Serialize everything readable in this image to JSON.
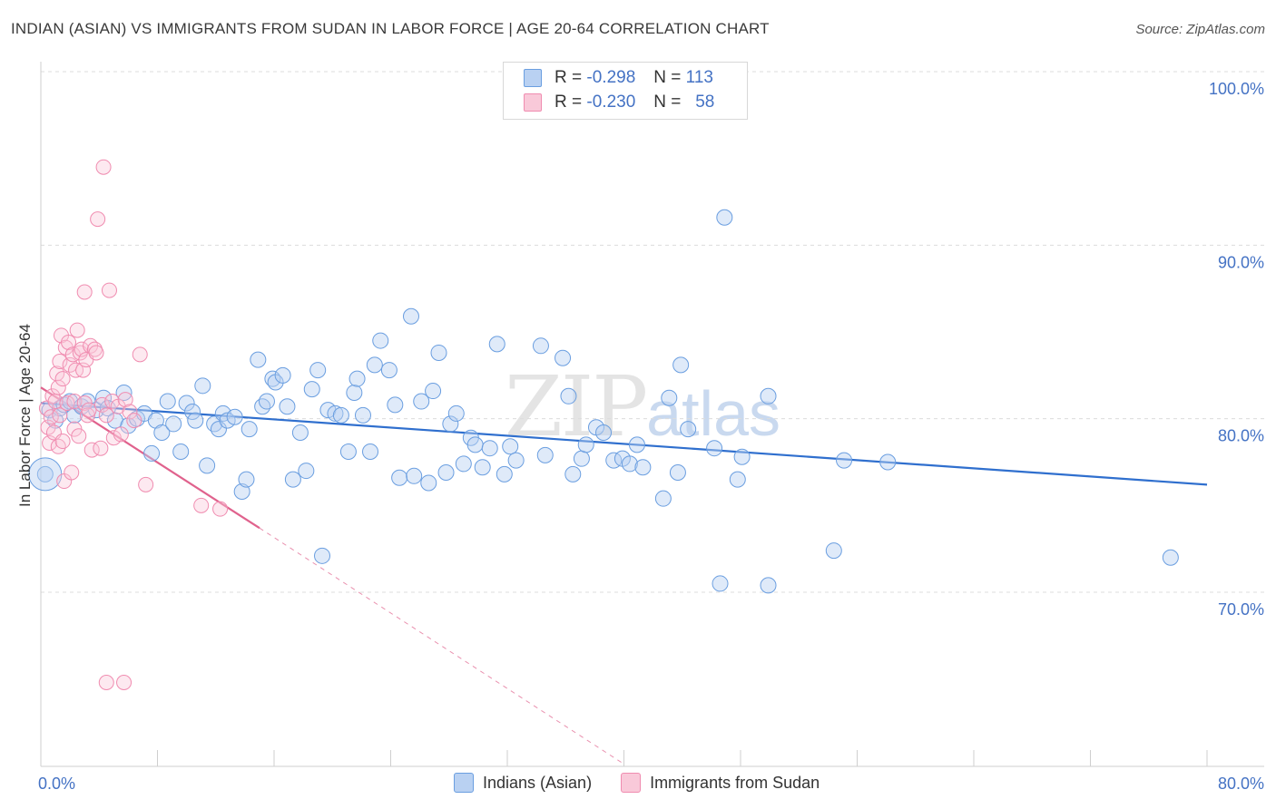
{
  "title": "INDIAN (ASIAN) VS IMMIGRANTS FROM SUDAN IN LABOR FORCE | AGE 20-64 CORRELATION CHART",
  "source": "Source: ZipAtlas.com",
  "watermark": {
    "zip": "ZIP",
    "atlas": "atlas"
  },
  "legend_top": [
    {
      "r_label": "R =",
      "r_value": "-0.298",
      "n_label": "N =",
      "n_value": "113"
    },
    {
      "r_label": "R =",
      "r_value": "-0.230",
      "n_label": "N =",
      "n_value": "58"
    }
  ],
  "legend_bottom": [
    "Indians (Asian)",
    "Immigrants from Sudan"
  ],
  "colors": {
    "blue": "#6a9ee0",
    "blue_line": "#2f6fce",
    "pink": "#f08cb0",
    "pink_line": "#e0628d",
    "grid": "#dcdcdc",
    "axis_text": "#4472c4"
  },
  "chart_data": {
    "type": "scatter",
    "title": "INDIAN (ASIAN) VS IMMIGRANTS FROM SUDAN IN LABOR FORCE | AGE 20-64 CORRELATION CHART",
    "xlabel": "",
    "ylabel": "In Labor Force | Age 20-64",
    "xlim": [
      0,
      80
    ],
    "ylim": [
      60,
      100
    ],
    "x_tick_labels": [
      "0.0%",
      "80.0%"
    ],
    "y_tick_labels": [
      "100.0%",
      "90.0%",
      "80.0%",
      "70.0%"
    ],
    "y_ticks": [
      100,
      90,
      80,
      70
    ],
    "series": [
      {
        "name": "Indians (Asian)",
        "color": "#6a9ee0",
        "trend": {
          "x0": 0,
          "y0": 80.9,
          "x1": 80,
          "y1": 76.2
        },
        "points": [
          [
            0.3,
            76.8
          ],
          [
            0.6,
            80.5
          ],
          [
            1.0,
            79.9
          ],
          [
            1.3,
            80.6
          ],
          [
            1.6,
            80.8
          ],
          [
            2.0,
            81.0
          ],
          [
            2.3,
            80.2
          ],
          [
            2.8,
            80.7
          ],
          [
            3.2,
            81.0
          ],
          [
            3.8,
            80.5
          ],
          [
            4.3,
            81.2
          ],
          [
            4.6,
            80.6
          ],
          [
            5.1,
            79.9
          ],
          [
            5.7,
            81.5
          ],
          [
            6.0,
            79.6
          ],
          [
            6.6,
            80.0
          ],
          [
            7.1,
            80.3
          ],
          [
            7.6,
            78.0
          ],
          [
            7.9,
            79.9
          ],
          [
            8.3,
            79.2
          ],
          [
            8.7,
            81.0
          ],
          [
            9.1,
            79.7
          ],
          [
            9.6,
            78.1
          ],
          [
            10.0,
            80.9
          ],
          [
            10.4,
            80.4
          ],
          [
            10.6,
            79.9
          ],
          [
            11.1,
            81.9
          ],
          [
            11.4,
            77.3
          ],
          [
            11.9,
            79.7
          ],
          [
            12.2,
            79.4
          ],
          [
            12.5,
            80.3
          ],
          [
            12.8,
            79.9
          ],
          [
            13.3,
            80.1
          ],
          [
            13.8,
            75.8
          ],
          [
            14.1,
            76.5
          ],
          [
            14.3,
            79.4
          ],
          [
            14.9,
            83.4
          ],
          [
            15.2,
            80.7
          ],
          [
            15.5,
            81.0
          ],
          [
            15.9,
            82.3
          ],
          [
            16.1,
            82.1
          ],
          [
            16.6,
            82.5
          ],
          [
            16.9,
            80.7
          ],
          [
            17.3,
            76.5
          ],
          [
            17.8,
            79.2
          ],
          [
            18.2,
            77.0
          ],
          [
            18.6,
            81.7
          ],
          [
            19.0,
            82.8
          ],
          [
            19.3,
            72.1
          ],
          [
            19.7,
            80.5
          ],
          [
            20.2,
            80.3
          ],
          [
            20.6,
            80.2
          ],
          [
            21.1,
            78.1
          ],
          [
            21.5,
            81.5
          ],
          [
            21.7,
            82.3
          ],
          [
            22.1,
            80.2
          ],
          [
            22.6,
            78.1
          ],
          [
            22.9,
            83.1
          ],
          [
            23.3,
            84.5
          ],
          [
            23.9,
            82.8
          ],
          [
            24.3,
            80.8
          ],
          [
            24.6,
            76.6
          ],
          [
            25.4,
            85.9
          ],
          [
            25.6,
            76.7
          ],
          [
            26.1,
            81.0
          ],
          [
            26.6,
            76.3
          ],
          [
            26.9,
            81.6
          ],
          [
            27.3,
            83.8
          ],
          [
            27.8,
            76.9
          ],
          [
            28.1,
            79.7
          ],
          [
            28.5,
            80.3
          ],
          [
            29.0,
            77.4
          ],
          [
            29.5,
            78.9
          ],
          [
            29.8,
            78.5
          ],
          [
            30.3,
            77.2
          ],
          [
            30.8,
            78.3
          ],
          [
            31.3,
            84.3
          ],
          [
            31.8,
            76.8
          ],
          [
            32.2,
            78.4
          ],
          [
            32.6,
            77.6
          ],
          [
            34.3,
            84.2
          ],
          [
            34.6,
            77.9
          ],
          [
            35.8,
            83.5
          ],
          [
            36.2,
            81.3
          ],
          [
            36.5,
            76.8
          ],
          [
            37.1,
            77.7
          ],
          [
            37.4,
            78.5
          ],
          [
            38.1,
            79.5
          ],
          [
            38.6,
            79.2
          ],
          [
            39.3,
            77.6
          ],
          [
            39.9,
            77.7
          ],
          [
            40.4,
            77.4
          ],
          [
            40.9,
            78.5
          ],
          [
            41.3,
            77.2
          ],
          [
            42.7,
            75.4
          ],
          [
            43.1,
            81.2
          ],
          [
            43.7,
            76.9
          ],
          [
            43.9,
            83.1
          ],
          [
            44.4,
            79.4
          ],
          [
            46.2,
            78.3
          ],
          [
            46.6,
            70.5
          ],
          [
            46.9,
            91.6
          ],
          [
            47.8,
            76.5
          ],
          [
            48.1,
            77.8
          ],
          [
            49.9,
            81.3
          ],
          [
            49.9,
            70.4
          ],
          [
            54.4,
            72.4
          ],
          [
            55.1,
            77.6
          ],
          [
            58.1,
            77.5
          ],
          [
            77.5,
            72.0
          ]
        ]
      },
      {
        "name": "Immigrants from Sudan",
        "color": "#f08cb0",
        "trend": {
          "x0": 0,
          "y0": 81.8,
          "x1": 15,
          "y1": 73.7
        },
        "trend_dashed": {
          "x0": 15,
          "y0": 73.7,
          "x1": 40,
          "y1": 60.1
        },
        "points": [
          [
            0.4,
            80.6
          ],
          [
            0.5,
            79.5
          ],
          [
            0.6,
            78.6
          ],
          [
            0.7,
            80.1
          ],
          [
            0.8,
            81.3
          ],
          [
            0.9,
            79.2
          ],
          [
            1.0,
            81.0
          ],
          [
            1.1,
            82.6
          ],
          [
            1.2,
            78.4
          ],
          [
            1.2,
            81.8
          ],
          [
            1.3,
            80.2
          ],
          [
            1.3,
            83.3
          ],
          [
            1.4,
            84.8
          ],
          [
            1.5,
            78.7
          ],
          [
            1.5,
            82.3
          ],
          [
            1.6,
            76.4
          ],
          [
            1.7,
            84.1
          ],
          [
            1.8,
            80.9
          ],
          [
            1.9,
            84.4
          ],
          [
            2.0,
            83.1
          ],
          [
            2.1,
            76.9
          ],
          [
            2.2,
            83.7
          ],
          [
            2.3,
            81.0
          ],
          [
            2.3,
            79.4
          ],
          [
            2.4,
            82.8
          ],
          [
            2.5,
            85.1
          ],
          [
            2.6,
            79.0
          ],
          [
            2.7,
            83.8
          ],
          [
            2.8,
            84.0
          ],
          [
            2.9,
            82.8
          ],
          [
            3.0,
            87.3
          ],
          [
            3.0,
            80.9
          ],
          [
            3.1,
            83.4
          ],
          [
            3.2,
            80.2
          ],
          [
            3.3,
            80.5
          ],
          [
            3.4,
            84.2
          ],
          [
            3.5,
            78.2
          ],
          [
            3.7,
            84.0
          ],
          [
            3.8,
            83.8
          ],
          [
            3.9,
            91.5
          ],
          [
            4.2,
            80.8
          ],
          [
            4.5,
            80.2
          ],
          [
            4.9,
            81.0
          ],
          [
            5.0,
            78.9
          ],
          [
            5.3,
            80.7
          ],
          [
            5.5,
            79.1
          ],
          [
            5.8,
            81.1
          ],
          [
            6.1,
            80.4
          ],
          [
            6.4,
            79.9
          ],
          [
            6.8,
            83.7
          ],
          [
            7.2,
            76.2
          ],
          [
            4.1,
            78.3
          ],
          [
            4.7,
            87.4
          ],
          [
            4.3,
            94.5
          ],
          [
            11.0,
            75.0
          ],
          [
            12.3,
            74.8
          ],
          [
            4.5,
            64.8
          ],
          [
            5.7,
            64.8
          ]
        ]
      }
    ]
  }
}
